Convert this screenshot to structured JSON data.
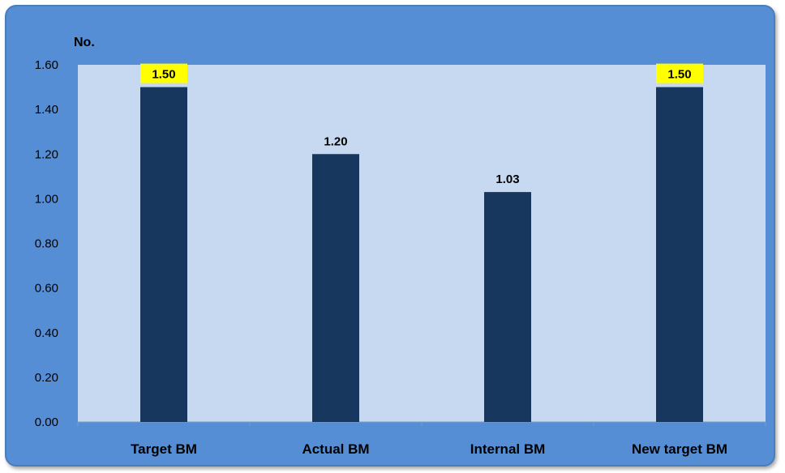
{
  "chart_data": {
    "type": "bar",
    "ylabel": "No.",
    "categories": [
      "Target BM",
      "Actual BM",
      "Internal BM",
      "New target BM"
    ],
    "values": [
      1.5,
      1.2,
      1.03,
      1.5
    ],
    "data_labels": [
      "1.50",
      "1.20",
      "1.03",
      "1.50"
    ],
    "highlighted": [
      true,
      false,
      false,
      true
    ],
    "ylim": [
      0,
      1.6
    ],
    "yticks": [
      "0.00",
      "0.20",
      "0.40",
      "0.60",
      "0.80",
      "1.00",
      "1.20",
      "1.40",
      "1.60"
    ],
    "grid": false,
    "legend": "none"
  },
  "colors": {
    "frame_background": "#558ED5",
    "plot_background": "#C6D9F1",
    "bar": "#17375E",
    "highlight_label_background": "#FFFF00"
  }
}
